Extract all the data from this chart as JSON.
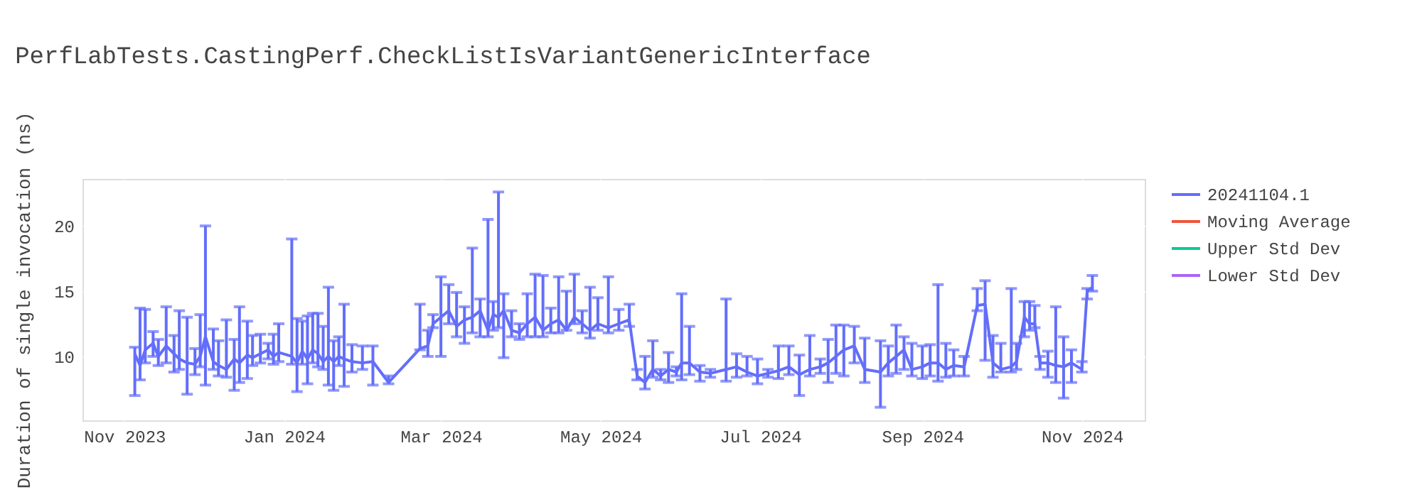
{
  "chart_data": {
    "type": "line",
    "title": "PerfLabTests.CastingPerf.CheckListIsVariantGenericInterface",
    "ylabel": "Duration of single invocation (ns)",
    "xlim": [
      "2023-10-16",
      "2024-11-25"
    ],
    "ylim": [
      5.1,
      23.6
    ],
    "xticks": [
      {
        "value": "2023-11-01",
        "label": "Nov 2023"
      },
      {
        "value": "2024-01-01",
        "label": "Jan 2024"
      },
      {
        "value": "2024-03-01",
        "label": "Mar 2024"
      },
      {
        "value": "2024-05-01",
        "label": "May 2024"
      },
      {
        "value": "2024-07-01",
        "label": "Jul 2024"
      },
      {
        "value": "2024-09-01",
        "label": "Sep 2024"
      },
      {
        "value": "2024-11-01",
        "label": "Nov 2024"
      }
    ],
    "yticks": [
      10,
      15,
      20
    ],
    "grid": true,
    "legend": "top right",
    "marker": "none",
    "line_style": "solid",
    "series": [
      {
        "name": "20241104.1",
        "color": "#636efa",
        "x": [
          "2023-11-05",
          "2023-11-07",
          "2023-11-09",
          "2023-11-12",
          "2023-11-14",
          "2023-11-17",
          "2023-11-20",
          "2023-11-22",
          "2023-11-25",
          "2023-11-28",
          "2023-11-30",
          "2023-12-02",
          "2023-12-05",
          "2023-12-07",
          "2023-12-10",
          "2023-12-13",
          "2023-12-15",
          "2023-12-18",
          "2023-12-20",
          "2023-12-23",
          "2023-12-26",
          "2023-12-28",
          "2023-12-30",
          "2024-01-04",
          "2024-01-06",
          "2024-01-08",
          "2024-01-10",
          "2024-01-12",
          "2024-01-14",
          "2024-01-16",
          "2024-01-18",
          "2024-01-20",
          "2024-01-22",
          "2024-01-24",
          "2024-01-27",
          "2024-01-31",
          "2024-02-04",
          "2024-02-10",
          "2024-02-22",
          "2024-02-25",
          "2024-02-27",
          "2024-03-01",
          "2024-03-04",
          "2024-03-07",
          "2024-03-10",
          "2024-03-13",
          "2024-03-16",
          "2024-03-19",
          "2024-03-21",
          "2024-03-23",
          "2024-03-25",
          "2024-03-28",
          "2024-03-31",
          "2024-04-03",
          "2024-04-06",
          "2024-04-09",
          "2024-04-12",
          "2024-04-15",
          "2024-04-18",
          "2024-04-21",
          "2024-04-24",
          "2024-04-27",
          "2024-04-30",
          "2024-05-04",
          "2024-05-08",
          "2024-05-12",
          "2024-05-15",
          "2024-05-18",
          "2024-05-21",
          "2024-05-24",
          "2024-05-27",
          "2024-05-30",
          "2024-06-01",
          "2024-06-04",
          "2024-06-08",
          "2024-06-12",
          "2024-06-18",
          "2024-06-22",
          "2024-06-26",
          "2024-06-30",
          "2024-07-04",
          "2024-07-08",
          "2024-07-12",
          "2024-07-16",
          "2024-07-20",
          "2024-07-24",
          "2024-07-27",
          "2024-07-30",
          "2024-08-02",
          "2024-08-06",
          "2024-08-10",
          "2024-08-16",
          "2024-08-19",
          "2024-08-22",
          "2024-08-25",
          "2024-08-28",
          "2024-09-01",
          "2024-09-04",
          "2024-09-07",
          "2024-09-10",
          "2024-09-13",
          "2024-09-17",
          "2024-09-22",
          "2024-09-25",
          "2024-09-28",
          "2024-10-01",
          "2024-10-05",
          "2024-10-07",
          "2024-10-10",
          "2024-10-12",
          "2024-10-14",
          "2024-10-16",
          "2024-10-19",
          "2024-10-22",
          "2024-10-25",
          "2024-10-28",
          "2024-11-01",
          "2024-11-03",
          "2024-11-05"
        ],
        "values": [
          10.2,
          9.3,
          10.5,
          11.0,
          10.0,
          10.8,
          10.2,
          9.8,
          9.5,
          9.4,
          10.0,
          11.5,
          9.6,
          9.3,
          9.0,
          9.8,
          9.5,
          10.1,
          9.9,
          10.2,
          10.5,
          10.0,
          10.3,
          10.0,
          9.5,
          10.4,
          9.8,
          10.5,
          10.2,
          9.6,
          10.0,
          9.6,
          10.0,
          9.8,
          9.6,
          9.5,
          9.6,
          8.0,
          10.6,
          10.8,
          12.5,
          13.0,
          13.5,
          12.3,
          12.8,
          13.0,
          13.5,
          12.0,
          13.2,
          13.0,
          13.5,
          12.0,
          11.8,
          12.5,
          13.0,
          12.0,
          12.5,
          12.8,
          12.0,
          13.0,
          12.5,
          12.0,
          12.5,
          12.2,
          12.5,
          12.8,
          8.5,
          8.0,
          9.0,
          8.5,
          9.0,
          8.8,
          9.5,
          9.5,
          8.8,
          8.7,
          9.0,
          9.2,
          8.8,
          8.5,
          8.7,
          8.9,
          9.2,
          8.6,
          9.0,
          9.2,
          9.5,
          10.0,
          10.5,
          10.8,
          9.0,
          8.8,
          9.5,
          10.0,
          10.5,
          9.0,
          9.2,
          9.5,
          9.5,
          9.0,
          9.3,
          9.2,
          13.9,
          14.0,
          9.5,
          9.0,
          9.2,
          9.6,
          13.0,
          12.5,
          12.5,
          9.5,
          9.5,
          9.3,
          9.2,
          9.5,
          9.0,
          15.0,
          15.3
        ],
        "errors": [
          [
            7.0,
            10.7
          ],
          [
            8.2,
            13.7
          ],
          [
            9.5,
            13.6
          ],
          [
            10.0,
            11.9
          ],
          [
            9.3,
            11.3
          ],
          [
            9.5,
            13.8
          ],
          [
            8.8,
            11.6
          ],
          [
            9.0,
            13.5
          ],
          [
            7.1,
            13.0
          ],
          [
            8.6,
            10.6
          ],
          [
            9.2,
            13.2
          ],
          [
            7.8,
            20.0
          ],
          [
            9.0,
            12.1
          ],
          [
            8.5,
            11.2
          ],
          [
            8.4,
            12.8
          ],
          [
            7.4,
            11.3
          ],
          [
            8.0,
            13.8
          ],
          [
            8.3,
            12.7
          ],
          [
            9.3,
            11.6
          ],
          [
            9.5,
            11.7
          ],
          [
            9.8,
            11.0
          ],
          [
            9.4,
            11.7
          ],
          [
            9.6,
            12.5
          ],
          [
            9.4,
            19.0
          ],
          [
            7.3,
            12.9
          ],
          [
            9.4,
            12.7
          ],
          [
            7.9,
            13.1
          ],
          [
            9.5,
            13.3
          ],
          [
            9.2,
            13.3
          ],
          [
            9.0,
            12.3
          ],
          [
            7.8,
            15.3
          ],
          [
            7.4,
            11.2
          ],
          [
            9.3,
            11.5
          ],
          [
            7.7,
            14.0
          ],
          [
            8.8,
            10.9
          ],
          [
            9.0,
            10.8
          ],
          [
            7.8,
            10.8
          ],
          [
            7.9,
            8.5
          ],
          [
            10.5,
            14.0
          ],
          [
            10.0,
            12.0
          ],
          [
            12.2,
            13.2
          ],
          [
            10.0,
            16.1
          ],
          [
            12.5,
            15.5
          ],
          [
            11.5,
            14.9
          ],
          [
            11.0,
            13.8
          ],
          [
            11.8,
            18.3
          ],
          [
            11.5,
            14.4
          ],
          [
            11.5,
            20.5
          ],
          [
            12.0,
            14.2
          ],
          [
            12.2,
            22.6
          ],
          [
            9.9,
            14.8
          ],
          [
            11.5,
            13.5
          ],
          [
            11.3,
            12.5
          ],
          [
            11.5,
            14.8
          ],
          [
            11.5,
            16.3
          ],
          [
            11.5,
            16.2
          ],
          [
            11.8,
            13.7
          ],
          [
            11.8,
            16.1
          ],
          [
            12.0,
            15.0
          ],
          [
            12.5,
            16.3
          ],
          [
            11.8,
            13.5
          ],
          [
            11.4,
            15.3
          ],
          [
            12.0,
            14.5
          ],
          [
            11.8,
            16.1
          ],
          [
            12.0,
            13.6
          ],
          [
            12.3,
            14.0
          ],
          [
            8.2,
            9.0
          ],
          [
            7.5,
            10.0
          ],
          [
            8.4,
            11.2
          ],
          [
            8.2,
            9.0
          ],
          [
            8.0,
            10.3
          ],
          [
            8.5,
            9.2
          ],
          [
            8.2,
            14.8
          ],
          [
            8.6,
            12.3
          ],
          [
            8.1,
            9.3
          ],
          [
            8.4,
            9.0
          ],
          [
            8.1,
            14.4
          ],
          [
            8.4,
            10.2
          ],
          [
            8.5,
            10.0
          ],
          [
            7.9,
            9.8
          ],
          [
            8.4,
            9.0
          ],
          [
            8.3,
            10.8
          ],
          [
            8.6,
            10.8
          ],
          [
            7.0,
            10.1
          ],
          [
            8.5,
            11.6
          ],
          [
            8.7,
            9.8
          ],
          [
            8.0,
            11.3
          ],
          [
            8.7,
            12.4
          ],
          [
            8.5,
            12.4
          ],
          [
            9.5,
            12.3
          ],
          [
            8.0,
            11.4
          ],
          [
            6.1,
            11.2
          ],
          [
            8.5,
            10.8
          ],
          [
            8.7,
            12.4
          ],
          [
            9.0,
            11.5
          ],
          [
            8.5,
            11.0
          ],
          [
            8.3,
            10.8
          ],
          [
            8.5,
            10.9
          ],
          [
            8.1,
            15.5
          ],
          [
            8.4,
            11.0
          ],
          [
            8.5,
            10.5
          ],
          [
            8.5,
            10.0
          ],
          [
            13.5,
            15.2
          ],
          [
            9.7,
            15.8
          ],
          [
            8.4,
            11.6
          ],
          [
            8.8,
            11.0
          ],
          [
            8.8,
            15.2
          ],
          [
            9.0,
            11.0
          ],
          [
            11.5,
            14.2
          ],
          [
            12.0,
            14.2
          ],
          [
            12.2,
            13.9
          ],
          [
            9.0,
            10.0
          ],
          [
            8.4,
            10.4
          ],
          [
            8.0,
            13.8
          ],
          [
            6.8,
            11.5
          ],
          [
            8.0,
            10.5
          ],
          [
            8.8,
            9.6
          ],
          [
            14.4,
            15.2
          ],
          [
            15.0,
            16.2
          ]
        ]
      },
      {
        "name": "Moving Average",
        "color": "#ef553b"
      },
      {
        "name": "Upper Std Dev",
        "color": "#00cc96"
      },
      {
        "name": "Lower Std Dev",
        "color": "#ab63fa"
      }
    ]
  }
}
